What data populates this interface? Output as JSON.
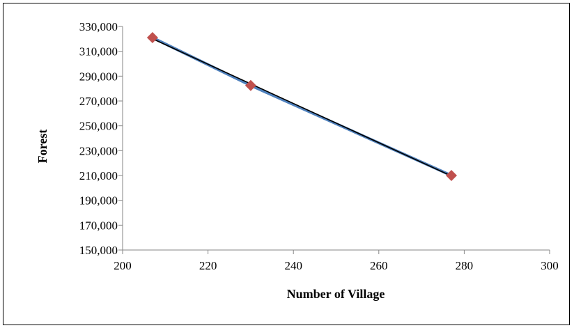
{
  "chart_data": {
    "type": "scatter",
    "title": "",
    "xlabel": "Number of Village",
    "ylabel": "Forest",
    "xlim": [
      200,
      300
    ],
    "ylim": [
      150000,
      330000
    ],
    "x_ticks": [
      200,
      220,
      240,
      260,
      280,
      300
    ],
    "y_ticks": [
      150000,
      170000,
      190000,
      210000,
      230000,
      250000,
      270000,
      290000,
      310000,
      330000
    ],
    "x_tick_labels": [
      "200",
      "220",
      "240",
      "260",
      "280",
      "300"
    ],
    "y_tick_labels": [
      "150,000",
      "170,000",
      "190,000",
      "210,000",
      "230,000",
      "250,000",
      "270,000",
      "290,000",
      "310,000",
      "330,000"
    ],
    "grid": false,
    "legend": "none",
    "series": [
      {
        "x": [
          207,
          230,
          277
        ],
        "y": [
          321000,
          282500,
          210000
        ],
        "marker": "diamond",
        "marker_color": "#c0504d",
        "line_color": "#4f81bd"
      }
    ],
    "trendline": {
      "type": "linear",
      "color": "#000000"
    }
  }
}
